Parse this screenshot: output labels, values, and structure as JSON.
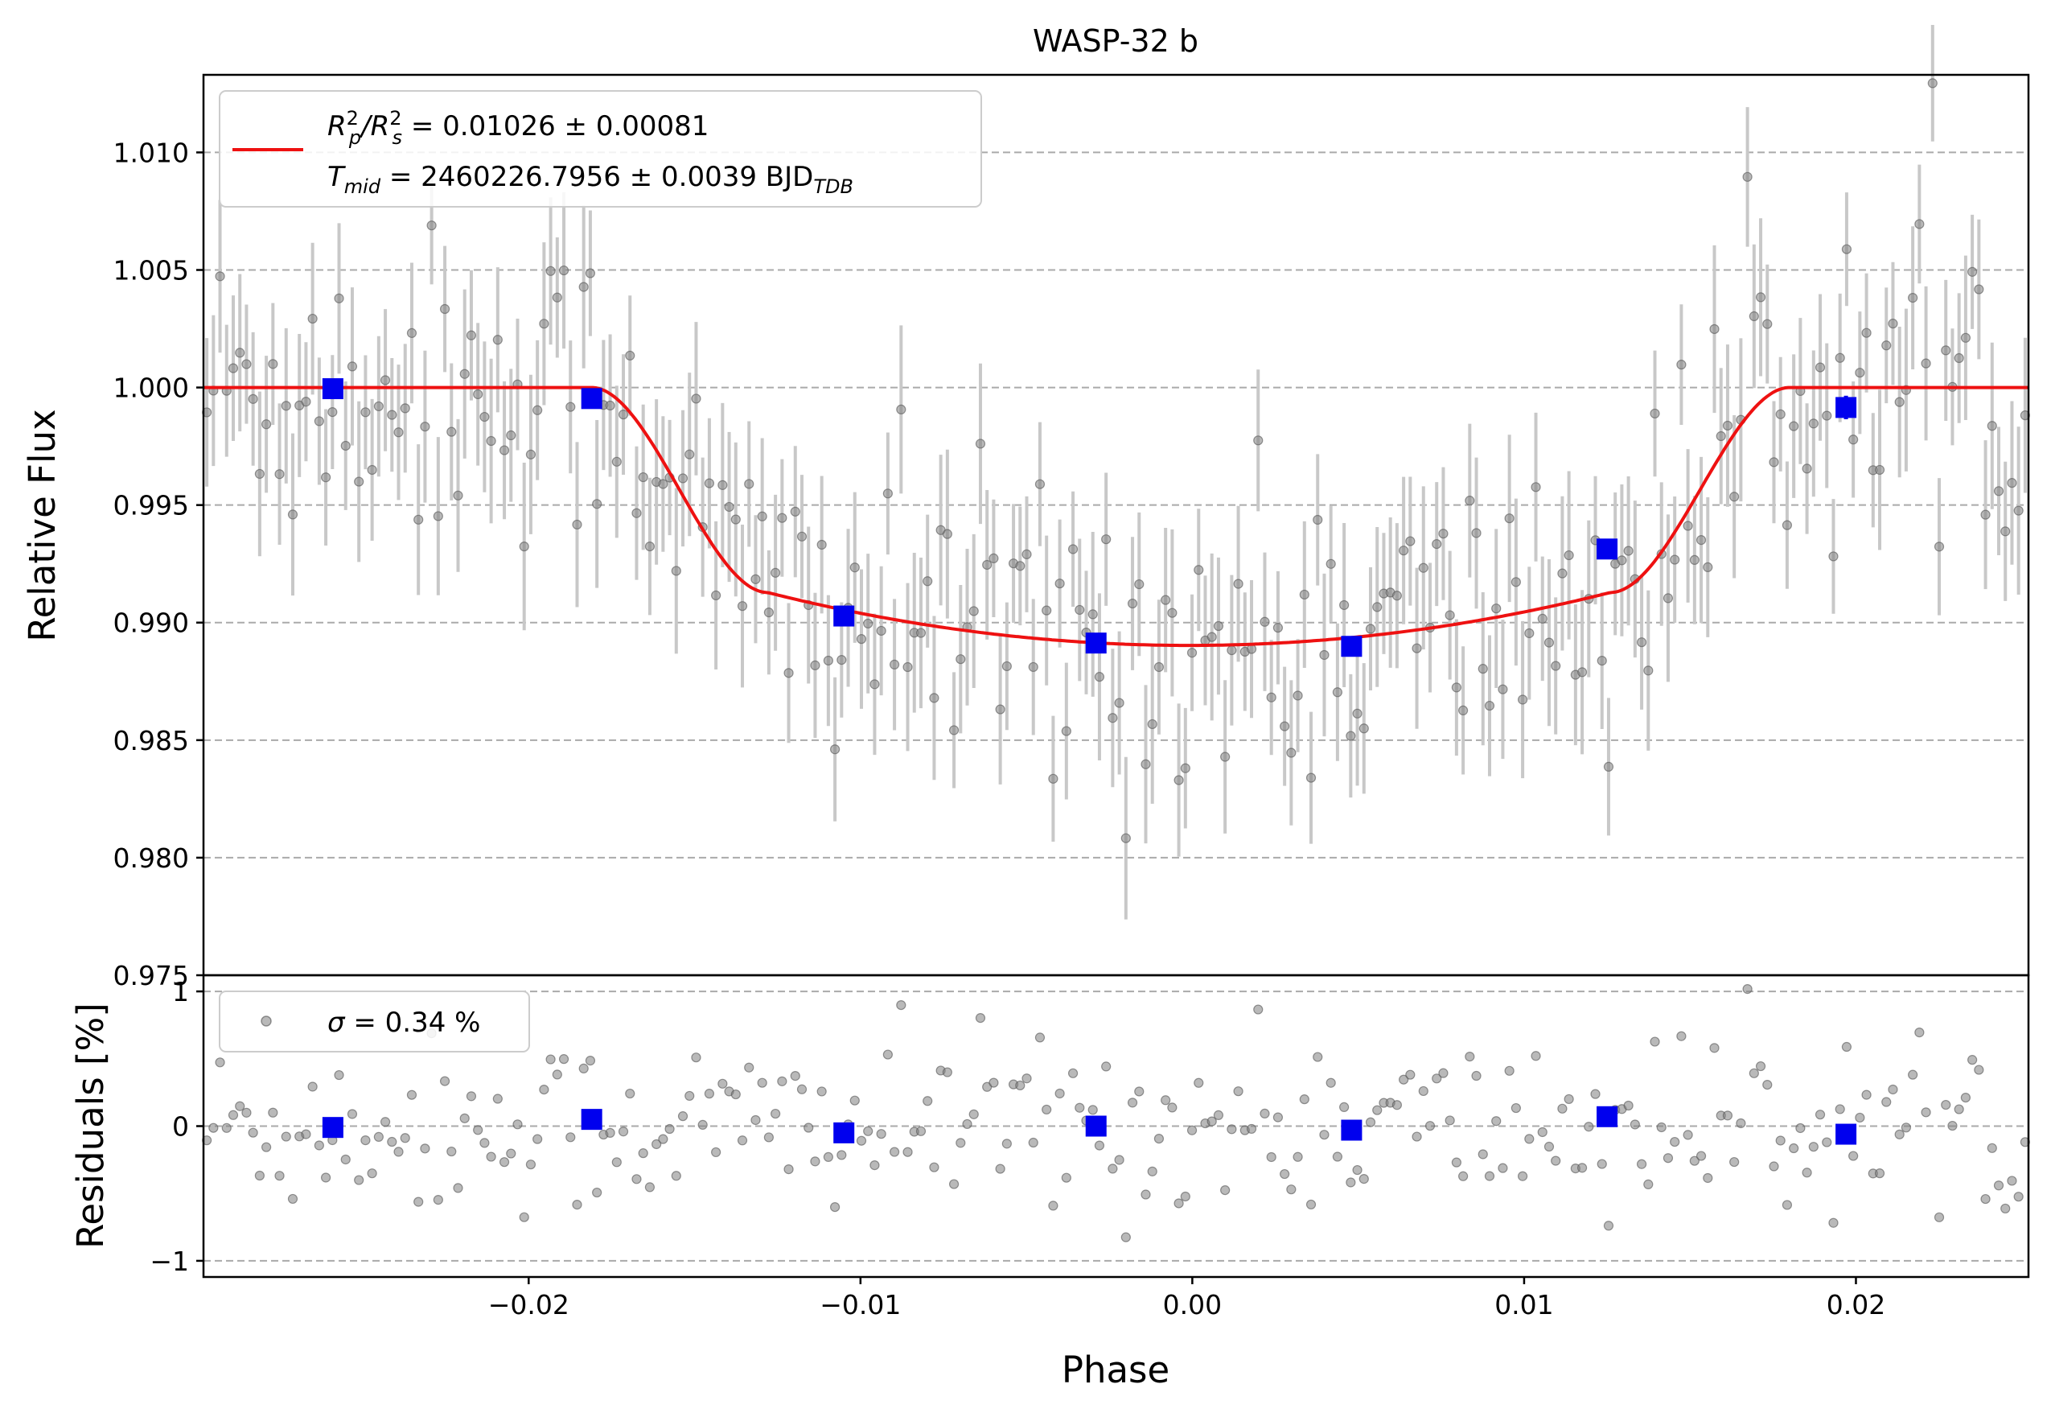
{
  "chart_data": [
    {
      "type": "scatter",
      "panel": "top",
      "title": "WASP-32 b",
      "xlabel": "",
      "ylabel": "Relative Flux",
      "xlim": [
        -0.0298,
        0.0252
      ],
      "ylim": [
        0.975,
        1.0133
      ],
      "yticks": [
        0.975,
        0.98,
        0.985,
        0.99,
        0.995,
        1.0,
        1.005,
        1.01
      ],
      "ytick_labels": [
        "0.975",
        "0.980",
        "0.985",
        "0.990",
        "0.995",
        "1.000",
        "1.005",
        "1.010"
      ],
      "grid": "horizontal dashed",
      "legend": {
        "placement": "top-left",
        "line1_prefix": "R",
        "line1_sub1": "p",
        "line1_sup1": "2",
        "line1_slash": "/R",
        "line1_sub2": "s",
        "line1_sup2": "2",
        "line1_value": " = 0.01026 ± 0.00081",
        "line2_prefix": "T",
        "line2_sub": "mid",
        "line2_value": " = 2460226.7956 ± 0.0039 BJD",
        "line2_sub2": "TDB"
      },
      "model": {
        "baseline": 1.0,
        "depth_min": 0.98903,
        "ingress_start": -0.0181,
        "ingress_end": -0.0128,
        "egress_start": 0.0126,
        "egress_end": 0.018,
        "contact_flux": 0.99128,
        "color": "#ee1111"
      },
      "binned": {
        "x": [
          -0.0259,
          -0.0181,
          -0.0105,
          -0.0029,
          0.0048,
          0.0125,
          0.0197
        ],
        "y": [
          0.99995,
          0.99953,
          0.99028,
          0.98913,
          0.98899,
          0.99313,
          0.99915
        ],
        "err": [
          0.0003,
          0.0003,
          0.0003,
          0.0003,
          0.0003,
          0.0004,
          0.0005
        ],
        "color": "#0000ee"
      },
      "raw_points_note_color": "#808080"
    },
    {
      "type": "scatter",
      "panel": "bottom",
      "xlabel": "Phase",
      "ylabel": "Residuals [%]",
      "xlim": [
        -0.0298,
        0.0252
      ],
      "ylim": [
        -1.12,
        1.12
      ],
      "yticks": [
        -1,
        0,
        1
      ],
      "ytick_labels": [
        "−1",
        "0",
        "1"
      ],
      "xticks": [
        -0.02,
        -0.01,
        0.0,
        0.01,
        0.02
      ],
      "xtick_labels": [
        "−0.02",
        "−0.01",
        "0.00",
        "0.01",
        "0.02"
      ],
      "grid": "horizontal dashed",
      "legend": {
        "placement": "top-left",
        "sigma_symbol": "σ",
        "text": " = 0.34 %"
      },
      "binned": {
        "x": [
          -0.0259,
          -0.0181,
          -0.0105,
          -0.0029,
          0.0048,
          0.0125,
          0.0197
        ],
        "y": [
          -0.01,
          0.05,
          -0.05,
          0.0,
          -0.03,
          0.07,
          -0.06
        ],
        "color": "#0000ee"
      }
    }
  ]
}
